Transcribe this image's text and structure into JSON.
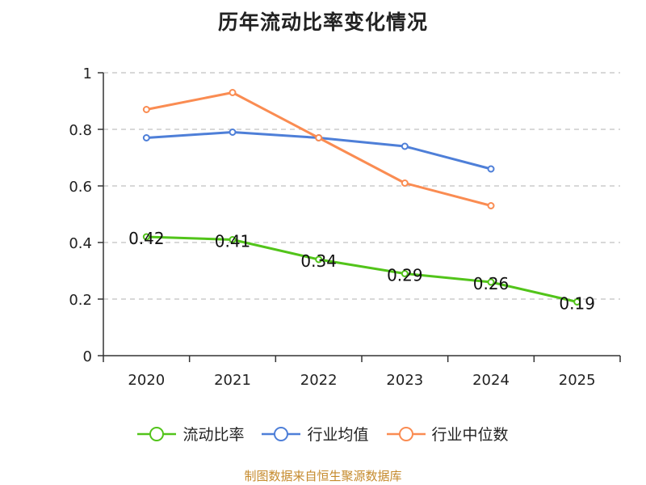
{
  "chart_data": {
    "type": "line",
    "title": "历年流动比率变化情况",
    "categories": [
      "2020",
      "2021",
      "2022",
      "2023",
      "2024",
      "2025"
    ],
    "y_ticks": [
      "0",
      "0.2",
      "0.4",
      "0.6",
      "0.8",
      "1"
    ],
    "ylim": [
      0,
      1
    ],
    "grid": true,
    "legend_position": "bottom",
    "series": [
      {
        "name": "流动比率",
        "color": "#52c41a",
        "values": [
          0.42,
          0.41,
          0.34,
          0.29,
          0.26,
          0.19
        ],
        "labels": [
          "0.42",
          "0.41",
          "0.34",
          "0.29",
          "0.26",
          "0.19"
        ]
      },
      {
        "name": "行业均值",
        "color": "#4e7fd8",
        "values": [
          0.77,
          0.79,
          0.77,
          0.74,
          0.66,
          null
        ]
      },
      {
        "name": "行业中位数",
        "color": "#fa8c52",
        "values": [
          0.87,
          0.93,
          0.77,
          0.61,
          0.53,
          null
        ]
      }
    ]
  },
  "source": "制图数据来自恒生聚源数据库"
}
